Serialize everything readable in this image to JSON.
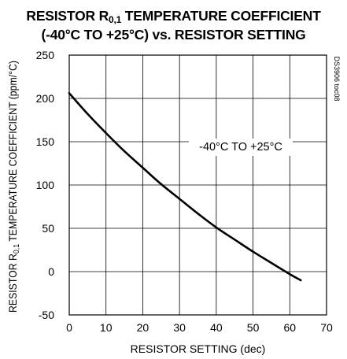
{
  "chart_data": {
    "type": "line",
    "title_line1_pre": "RESISTOR R",
    "title_line1_sub": "0,1",
    "title_line1_post": " TEMPERATURE COEFFICIENT",
    "title_line2": "(-40°C TO +25°C) vs. RESISTOR SETTING",
    "xlabel": "RESISTOR SETTING (dec)",
    "ylabel_pre": "RESISTOR R",
    "ylabel_sub": "0,1",
    "ylabel_post": " TEMPERATURE COEFFICIENT (ppm/°C)",
    "xlim": [
      0,
      70
    ],
    "ylim": [
      -50,
      250
    ],
    "x_ticks": [
      0,
      10,
      20,
      30,
      40,
      50,
      60,
      70
    ],
    "y_ticks": [
      -50,
      0,
      50,
      100,
      150,
      200,
      250
    ],
    "grid": true,
    "annotation": "-40°C TO +25°C",
    "doc_code": "DS3906 toc08",
    "series": [
      {
        "x": [
          0,
          5,
          10,
          15,
          20,
          25,
          30,
          35,
          40,
          45,
          50,
          55,
          60,
          63
        ],
        "values": [
          206,
          182,
          160,
          139,
          120,
          101,
          84,
          67,
          51,
          37,
          23,
          10,
          -3,
          -10
        ]
      }
    ]
  }
}
